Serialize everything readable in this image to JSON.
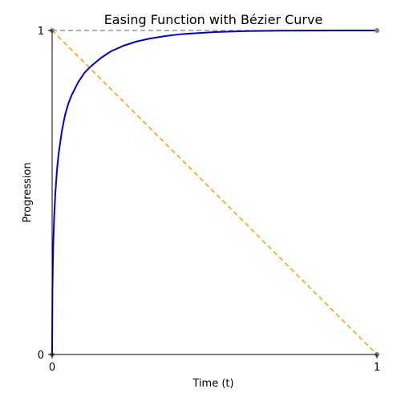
{
  "chart_data": {
    "type": "line",
    "title": "Easing Function with Bézier Curve",
    "xlabel": "Time (t)",
    "ylabel": "Progression",
    "xlim": [
      0,
      1
    ],
    "ylim": [
      0,
      1
    ],
    "x_ticks": [
      0,
      1
    ],
    "y_ticks": [
      0,
      1
    ],
    "grid": false,
    "series": [
      {
        "style": "solid",
        "color": "#0000dd",
        "x": [
          0,
          0.001,
          0.003,
          0.006,
          0.01,
          0.015,
          0.02,
          0.03,
          0.04,
          0.05,
          0.06,
          0.08,
          0.1,
          0.12,
          0.15,
          0.18,
          0.22,
          0.26,
          0.3,
          0.35,
          0.4,
          0.5,
          0.6,
          0.7,
          0.8,
          0.9,
          1
        ],
        "y": [
          0,
          0.2,
          0.32,
          0.42,
          0.5,
          0.57,
          0.62,
          0.69,
          0.74,
          0.775,
          0.8,
          0.84,
          0.87,
          0.89,
          0.915,
          0.935,
          0.953,
          0.966,
          0.975,
          0.983,
          0.989,
          0.995,
          0.998,
          0.9993,
          0.9998,
          1.0,
          1.0
        ]
      },
      {
        "style": "dashed",
        "color": "#ffa500",
        "x": [
          0,
          1
        ],
        "y": [
          1,
          0
        ]
      },
      {
        "style": "dashed",
        "color": "#808080",
        "x": [
          0,
          1
        ],
        "y": [
          1,
          1
        ]
      }
    ],
    "control_points": [
      {
        "x": 0,
        "y": 0,
        "color": "#808080"
      },
      {
        "x": 0,
        "y": 1,
        "color": "#808080"
      },
      {
        "x": 1,
        "y": 1,
        "color": "#808080"
      },
      {
        "x": 1,
        "y": 0,
        "color": "#808080"
      }
    ]
  }
}
